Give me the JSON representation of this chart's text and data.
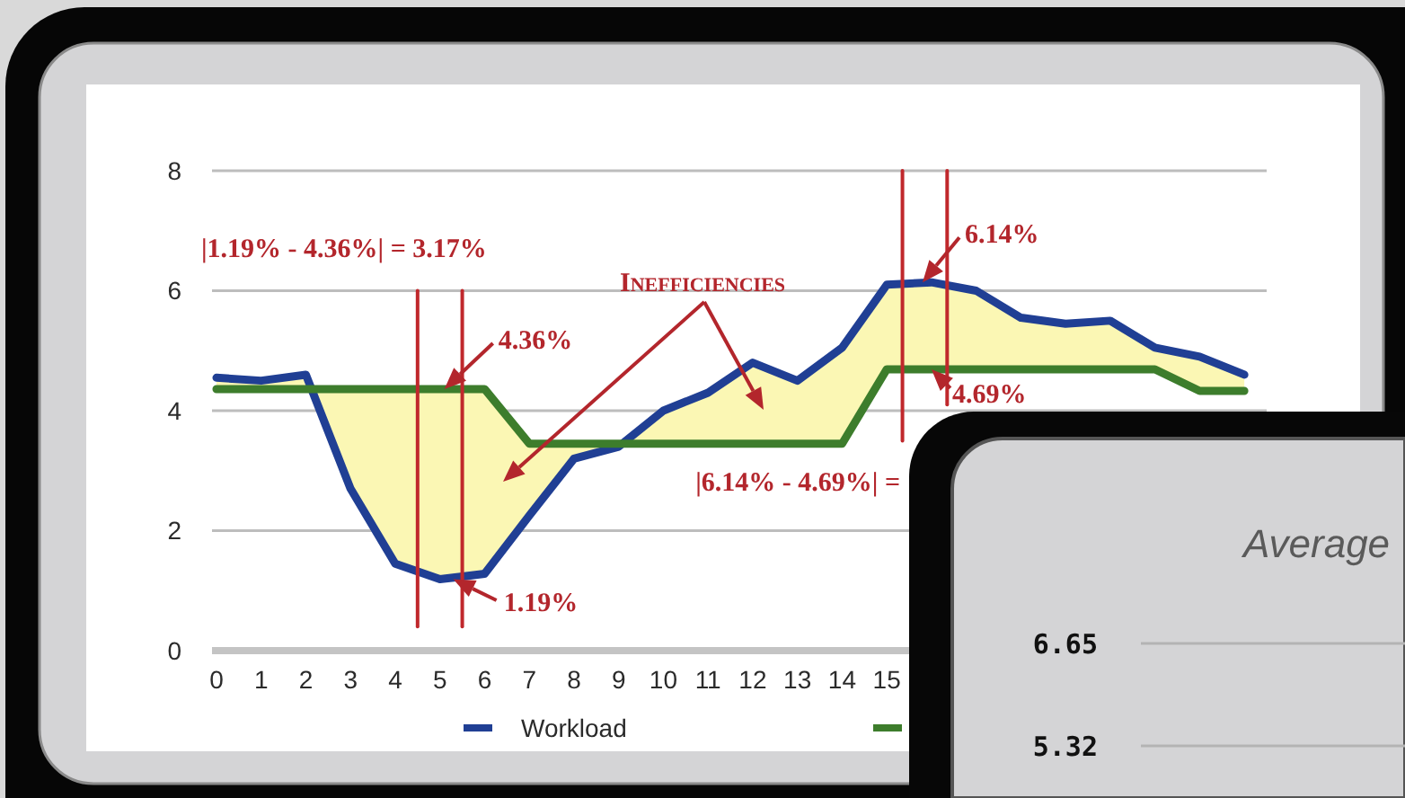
{
  "chart_data": [
    {
      "type": "line",
      "x": [
        0,
        1,
        2,
        3,
        4,
        5,
        6,
        7,
        8,
        9,
        10,
        11,
        12,
        13,
        14,
        15,
        16,
        17,
        18,
        19,
        20,
        21,
        22,
        23
      ],
      "xlim": [
        -0.1,
        23.5
      ],
      "xticks": [
        0,
        1,
        2,
        3,
        4,
        5,
        6,
        7,
        8,
        9,
        10,
        11,
        12,
        13,
        14,
        15
      ],
      "ylim": [
        0,
        8
      ],
      "yticks": [
        0,
        2,
        4,
        6,
        8
      ],
      "grid": "y",
      "legend": "bottom",
      "series": [
        {
          "name": "Workload",
          "color": "#203f94",
          "values": [
            4.55,
            4.5,
            4.6,
            2.7,
            1.45,
            1.19,
            1.28,
            2.25,
            3.2,
            3.4,
            4.0,
            4.3,
            4.8,
            4.5,
            5.05,
            6.1,
            6.14,
            6.0,
            5.55,
            5.45,
            5.5,
            5.05,
            4.9,
            4.6
          ],
          "upper": [
            4.55,
            4.5,
            4.6,
            2.7,
            1.45,
            1.19,
            1.28,
            2.25,
            3.2,
            3.4,
            4.0,
            4.3,
            4.8,
            4.5,
            5.05,
            6.1,
            6.14,
            6.0,
            5.55,
            5.45,
            5.5,
            5.05,
            4.9,
            4.6
          ],
          "lower": [
            4.36,
            4.36,
            4.36,
            4.36,
            4.36,
            4.36,
            4.36,
            3.45,
            3.45,
            3.45,
            3.45,
            3.45,
            3.45,
            3.45,
            3.45,
            4.69,
            4.69,
            4.69,
            4.69,
            4.69,
            4.69,
            4.69,
            4.33,
            4.33
          ]
        },
        {
          "color": "#3d7d2c",
          "values": [
            4.36,
            4.36,
            4.36,
            4.36,
            4.36,
            4.36,
            4.36,
            3.45,
            3.45,
            3.45,
            3.45,
            3.45,
            3.45,
            3.45,
            3.45,
            4.69,
            4.69,
            4.69,
            4.69,
            4.69,
            4.69,
            4.69,
            4.33,
            4.33
          ]
        },
        {
          "type": "line",
          "color": "#c0282c",
          "x": [
            4.5,
            4.5
          ],
          "values": [
            6,
            0.4
          ]
        },
        {
          "type": "line",
          "color": "#c0282c",
          "x": [
            5.5,
            5.5
          ],
          "values": [
            6,
            0.4
          ]
        },
        {
          "type": "line",
          "color": "#c0282c",
          "x": [
            15.35,
            15.35
          ],
          "values": [
            8,
            3.5
          ]
        },
        {
          "type": "line",
          "color": "#c0282c",
          "x": [
            16.35,
            16.35
          ],
          "values": [
            8,
            4.1
          ]
        }
      ],
      "annotations": [
        "|1.19% - 4.36%| = 3.17%",
        {
          "text": "4.36%",
          "x": 5.1,
          "y": 4.36
        },
        "INEFFICIENCIES",
        {
          "text": "6.14%",
          "x": 15.8,
          "y": 6.14
        },
        {
          "text": "4.69%",
          "x": 16,
          "y": 4.69
        },
        {
          "text": "1.19%",
          "x": 5.3,
          "y": 1.19
        },
        "|6.14% - 4.69%| ="
      ]
    },
    {
      "type": "line",
      "title": "Average",
      "categories": [
        null,
        null
      ],
      "ylim": [
        5.32,
        6.65
      ],
      "yticks": [
        5.32,
        6.65
      ],
      "grid": "y",
      "tick_labels": "y"
    }
  ]
}
